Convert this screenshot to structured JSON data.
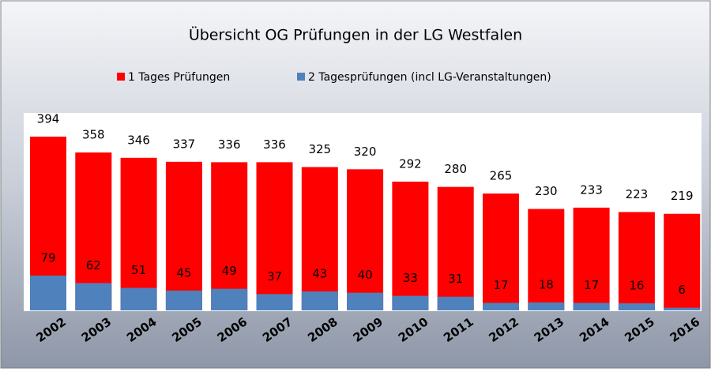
{
  "chart_data": {
    "type": "bar",
    "title": "Übersicht OG Prüfungen in der LG Westfalen",
    "categories": [
      "2002",
      "2003",
      "2004",
      "2005",
      "2006",
      "2007",
      "2008",
      "2009",
      "2010",
      "2011",
      "2012",
      "2013",
      "2014",
      "2015",
      "2016"
    ],
    "series": [
      {
        "name": "1 Tages Prüfungen",
        "color": "#ff0000",
        "values": [
          394,
          358,
          346,
          337,
          336,
          336,
          325,
          320,
          292,
          280,
          265,
          230,
          233,
          223,
          219
        ]
      },
      {
        "name": "2 Tagesprüfungen (incl LG-Veranstaltungen)",
        "color": "#4f81bd",
        "values": [
          79,
          62,
          51,
          45,
          49,
          37,
          43,
          40,
          33,
          31,
          17,
          18,
          17,
          16,
          6
        ]
      }
    ],
    "legend": "top"
  }
}
